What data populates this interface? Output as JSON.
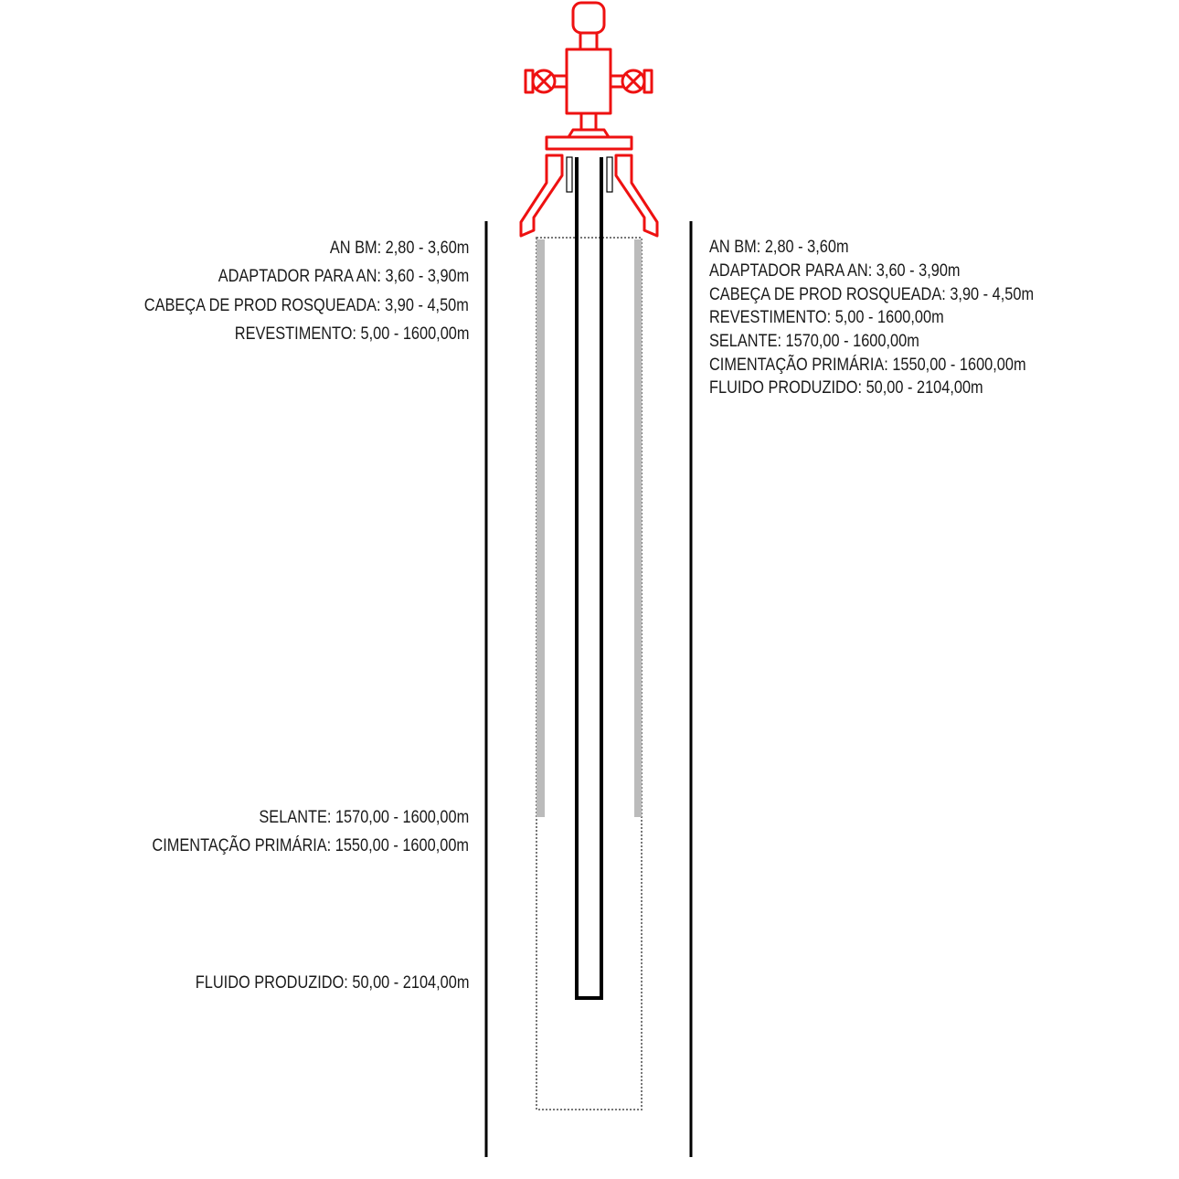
{
  "colors": {
    "wellhead": "#ee1111",
    "line": "#000000",
    "cement": "#bbbbbb",
    "dotted": "#777777",
    "text": "#1a1a1a"
  },
  "left_labels": {
    "an_bm": "AN BM: 2,80 - 3,60m",
    "adaptador": "ADAPTADOR PARA AN: 3,60 - 3,90m",
    "cabeca": "CABEÇA DE PROD ROSQUEADA: 3,90 - 4,50m",
    "revestimento": "REVESTIMENTO: 5,00 - 1600,00m",
    "selante": "SELANTE: 1570,00 - 1600,00m",
    "cimentacao": "CIMENTAÇÃO PRIMÁRIA: 1550,00 - 1600,00m",
    "fluido": "FLUIDO PRODUZIDO: 50,00 - 2104,00m"
  },
  "right_labels": {
    "an_bm": "AN BM: 2,80 - 3,60m",
    "adaptador": "ADAPTADOR PARA AN: 3,60 - 3,90m",
    "cabeca": "CABEÇA DE PROD ROSQUEADA: 3,90 - 4,50m",
    "revestimento": "REVESTIMENTO: 5,00 - 1600,00m",
    "selante": "SELANTE: 1570,00 - 1600,00m",
    "cimentacao": "CIMENTAÇÃO PRIMÁRIA: 1550,00 - 1600,00m",
    "fluido": "FLUIDO PRODUZIDO: 50,00 - 2104,00m"
  }
}
